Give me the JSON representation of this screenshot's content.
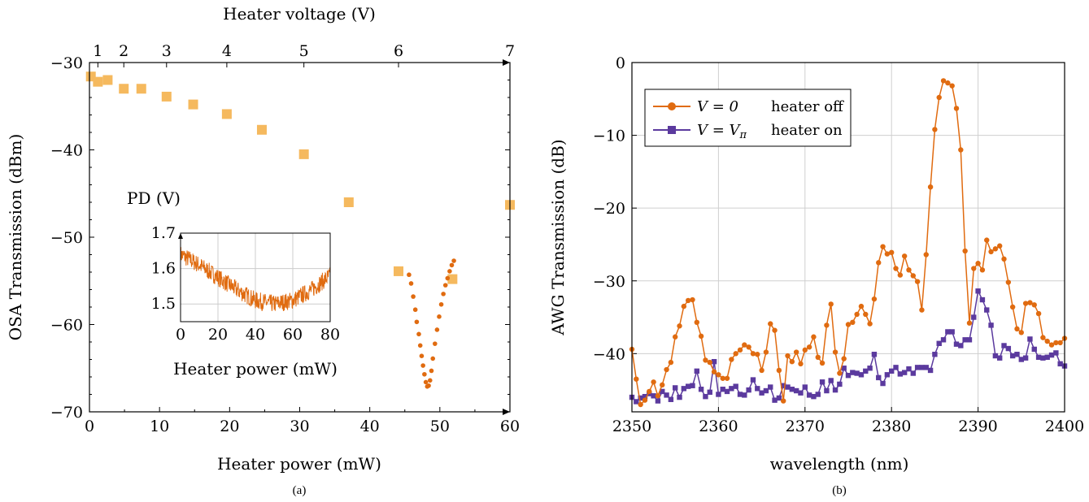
{
  "panel_a": {
    "caption": "(a)",
    "top_axis_title": "Heater voltage (V)",
    "top_ticks": [
      "1",
      "2",
      "3",
      "4",
      "5",
      "6",
      "7"
    ],
    "x_axis_title": "Heater power (mW)",
    "y_axis_title": "OSA Transmission (dBm)",
    "inset": {
      "y_title": "PD (V)",
      "x_title": "Heater power (mW)"
    }
  },
  "panel_b": {
    "caption": "(b)",
    "x_axis_title": "wavelength (nm)",
    "y_axis_title": "AWG Transmission (dB)",
    "legend": [
      {
        "expr": "V = 0",
        "desc": "heater off"
      },
      {
        "expr": "V = V",
        "sub": "π",
        "desc": "heater on"
      }
    ]
  },
  "colors": {
    "orange_squares": "#f5b95e",
    "orange_dots": "#e06b10",
    "orange_line": "#e06b10",
    "purple_line": "#5b3a9e"
  },
  "chart_data": [
    {
      "type": "scatter",
      "panel": "a",
      "xlabel": "Heater power (mW)",
      "ylabel": "OSA Transmission (dBm)",
      "xlim": [
        0,
        60
      ],
      "ylim": [
        -70,
        -30
      ],
      "xticks": [
        0,
        10,
        20,
        30,
        40,
        50,
        60
      ],
      "yticks": [
        -70,
        -60,
        -50,
        -40,
        -30
      ],
      "top_axis": {
        "label": "Heater voltage (V)",
        "ticks": [
          {
            "label": "1",
            "power": 1.2
          },
          {
            "label": "2",
            "power": 4.9
          },
          {
            "label": "3",
            "power": 11.0
          },
          {
            "label": "4",
            "power": 19.6
          },
          {
            "label": "5",
            "power": 30.6
          },
          {
            "label": "6",
            "power": 44.1
          },
          {
            "label": "7",
            "power": 60.0
          }
        ]
      },
      "series": [
        {
          "marker": "square",
          "x": [
            0.2,
            1.2,
            2.6,
            4.9,
            7.4,
            11.0,
            14.8,
            19.6,
            24.6,
            30.6,
            37.0,
            44.1,
            51.8,
            60.0
          ],
          "y": [
            -31.6,
            -32.2,
            -32.0,
            -33.0,
            -33.0,
            -33.9,
            -34.8,
            -35.9,
            -37.7,
            -40.5,
            -46.0,
            -53.9,
            -54.8,
            -46.3
          ]
        },
        {
          "marker": "dot",
          "x": [
            45.6,
            45.9,
            46.2,
            46.5,
            46.7,
            47.0,
            47.2,
            47.4,
            47.6,
            47.8,
            48.0,
            48.2,
            48.4,
            48.6,
            48.8,
            49.0,
            49.3,
            49.6,
            49.9,
            50.2,
            50.5,
            50.8,
            51.1,
            51.4,
            51.7,
            52.0
          ],
          "y": [
            -54.3,
            -55.3,
            -56.8,
            -58.3,
            -59.7,
            -61.1,
            -62.4,
            -63.6,
            -64.7,
            -65.7,
            -66.6,
            -67.1,
            -67.0,
            -66.4,
            -65.3,
            -63.9,
            -62.2,
            -60.6,
            -59.1,
            -57.7,
            -56.5,
            -55.5,
            -54.7,
            -53.9,
            -53.2,
            -52.7
          ]
        }
      ],
      "inset": {
        "type": "line",
        "ylabel": "PD (V)",
        "xlabel": "Heater power (mW)",
        "xlim": [
          0,
          80
        ],
        "ylim": [
          1.45,
          1.7
        ],
        "xticks": [
          0,
          20,
          40,
          60,
          80
        ],
        "yticks": [
          1.5,
          1.6,
          1.7
        ],
        "trend_x": [
          0,
          10,
          20,
          30,
          40,
          50,
          60,
          70,
          80
        ],
        "trend_y": [
          1.64,
          1.61,
          1.575,
          1.54,
          1.51,
          1.5,
          1.51,
          1.54,
          1.58
        ]
      }
    },
    {
      "type": "line",
      "panel": "b",
      "xlabel": "wavelength (nm)",
      "ylabel": "AWG Transmission (dB)",
      "xlim": [
        2350,
        2400
      ],
      "ylim": [
        -48,
        0
      ],
      "xticks": [
        2350,
        2360,
        2370,
        2380,
        2390,
        2400
      ],
      "yticks": [
        0,
        -10,
        -20,
        -30,
        -40
      ],
      "grid": true,
      "legend_position": "top-left",
      "series": [
        {
          "name": "V = 0   heater off",
          "marker": "circle",
          "x": [
            2350.0,
            2350.5,
            2351.0,
            2351.5,
            2352.0,
            2352.5,
            2353.0,
            2353.5,
            2354.0,
            2354.5,
            2355.0,
            2355.5,
            2356.0,
            2356.5,
            2357.0,
            2357.5,
            2358.0,
            2358.5,
            2359.0,
            2359.5,
            2360.0,
            2360.5,
            2361.0,
            2361.5,
            2362.0,
            2362.5,
            2363.0,
            2363.5,
            2364.0,
            2364.5,
            2365.0,
            2365.5,
            2366.0,
            2366.5,
            2367.0,
            2367.5,
            2368.0,
            2368.5,
            2369.0,
            2369.5,
            2370.0,
            2370.5,
            2371.0,
            2371.5,
            2372.0,
            2372.5,
            2373.0,
            2373.5,
            2374.0,
            2374.5,
            2375.0,
            2375.5,
            2376.0,
            2376.5,
            2377.0,
            2377.5,
            2378.0,
            2378.5,
            2379.0,
            2379.5,
            2380.0,
            2380.5,
            2381.0,
            2381.5,
            2382.0,
            2382.5,
            2383.0,
            2383.5,
            2384.0,
            2384.5,
            2385.0,
            2385.5,
            2386.0,
            2386.5,
            2387.0,
            2387.5,
            2388.0,
            2388.5,
            2389.0,
            2389.5,
            2390.0,
            2390.5,
            2391.0,
            2391.5,
            2392.0,
            2392.5,
            2393.0,
            2393.5,
            2394.0,
            2394.5,
            2395.0,
            2395.5,
            2396.0,
            2396.5,
            2397.0,
            2397.5,
            2398.0,
            2398.5,
            2399.0,
            2399.5,
            2400.0
          ],
          "y": [
            -39.4,
            -43.5,
            -47.0,
            -46.4,
            -45.2,
            -43.9,
            -45.8,
            -44.3,
            -42.2,
            -41.2,
            -37.7,
            -36.2,
            -33.5,
            -32.7,
            -32.6,
            -35.7,
            -37.6,
            -40.9,
            -41.2,
            -42.5,
            -42.9,
            -43.4,
            -43.4,
            -40.8,
            -40.0,
            -39.5,
            -38.8,
            -39.1,
            -40.0,
            -40.1,
            -42.3,
            -39.8,
            -35.9,
            -36.8,
            -42.3,
            -46.5,
            -40.3,
            -41.1,
            -39.8,
            -41.4,
            -39.5,
            -39.1,
            -37.7,
            -40.5,
            -41.3,
            -36.1,
            -33.2,
            -39.8,
            -42.7,
            -40.7,
            -36.0,
            -35.7,
            -34.6,
            -33.5,
            -34.6,
            -35.9,
            -32.5,
            -27.5,
            -25.3,
            -26.3,
            -26.1,
            -28.3,
            -29.2,
            -26.6,
            -28.5,
            -29.3,
            -30.1,
            -34.0,
            -26.4,
            -17.1,
            -9.2,
            -4.8,
            -2.5,
            -2.8,
            -3.2,
            -6.3,
            -12.0,
            -25.9,
            -35.8,
            -28.3,
            -27.6,
            -28.5,
            -24.4,
            -26.0,
            -25.6,
            -25.2,
            -27.0,
            -30.2,
            -33.6,
            -36.6,
            -37.1,
            -33.1,
            -33.0,
            -33.3,
            -34.5,
            -37.8,
            -38.3,
            -38.8,
            -38.5,
            -38.5,
            -37.9
          ]
        },
        {
          "name": "V = V_π heater on",
          "marker": "square",
          "x": [
            2350.0,
            2350.5,
            2351.0,
            2351.5,
            2352.0,
            2352.5,
            2353.0,
            2353.5,
            2354.0,
            2354.5,
            2355.0,
            2355.5,
            2356.0,
            2356.5,
            2357.0,
            2357.5,
            2358.0,
            2358.5,
            2359.0,
            2359.5,
            2360.0,
            2360.5,
            2361.0,
            2361.5,
            2362.0,
            2362.5,
            2363.0,
            2363.5,
            2364.0,
            2364.5,
            2365.0,
            2365.5,
            2366.0,
            2366.5,
            2367.0,
            2367.5,
            2368.0,
            2368.5,
            2369.0,
            2369.5,
            2370.0,
            2370.5,
            2371.0,
            2371.5,
            2372.0,
            2372.5,
            2373.0,
            2373.5,
            2374.0,
            2374.5,
            2375.0,
            2375.5,
            2376.0,
            2376.5,
            2377.0,
            2377.5,
            2378.0,
            2378.5,
            2379.0,
            2379.5,
            2380.0,
            2380.5,
            2381.0,
            2381.5,
            2382.0,
            2382.5,
            2383.0,
            2383.5,
            2384.0,
            2384.5,
            2385.0,
            2385.5,
            2386.0,
            2386.5,
            2387.0,
            2387.5,
            2388.0,
            2388.5,
            2389.0,
            2389.5,
            2390.0,
            2390.5,
            2391.0,
            2391.5,
            2392.0,
            2392.5,
            2393.0,
            2393.5,
            2394.0,
            2394.5,
            2395.0,
            2395.5,
            2396.0,
            2396.5,
            2397.0,
            2397.5,
            2398.0,
            2398.5,
            2399.0,
            2399.5,
            2400.0
          ],
          "y": [
            -46.0,
            -46.6,
            -46.1,
            -45.9,
            -45.5,
            -45.8,
            -46.5,
            -45.2,
            -45.7,
            -46.3,
            -44.7,
            -46.0,
            -44.8,
            -44.5,
            -44.4,
            -42.4,
            -44.9,
            -45.9,
            -45.3,
            -41.1,
            -45.6,
            -44.9,
            -45.2,
            -44.8,
            -44.5,
            -45.6,
            -45.7,
            -45.0,
            -43.6,
            -44.8,
            -45.4,
            -45.1,
            -44.6,
            -46.4,
            -46.1,
            -44.4,
            -44.6,
            -44.9,
            -45.1,
            -45.4,
            -44.6,
            -45.7,
            -45.9,
            -45.6,
            -43.9,
            -45.1,
            -43.7,
            -45.0,
            -44.2,
            -42.0,
            -43.0,
            -42.6,
            -42.7,
            -42.9,
            -42.4,
            -42.0,
            -40.1,
            -43.3,
            -44.1,
            -42.9,
            -42.4,
            -41.9,
            -42.8,
            -42.6,
            -42.1,
            -42.7,
            -41.9,
            -41.9,
            -41.9,
            -42.3,
            -40.1,
            -38.6,
            -38.1,
            -37.0,
            -37.0,
            -38.7,
            -38.9,
            -38.1,
            -38.1,
            -35.0,
            -31.4,
            -32.6,
            -34.0,
            -36.1,
            -40.3,
            -40.6,
            -38.9,
            -39.3,
            -40.3,
            -40.1,
            -40.8,
            -40.6,
            -38.0,
            -39.4,
            -40.5,
            -40.6,
            -40.5,
            -40.2,
            -39.9,
            -41.4,
            -41.7
          ]
        }
      ]
    }
  ]
}
